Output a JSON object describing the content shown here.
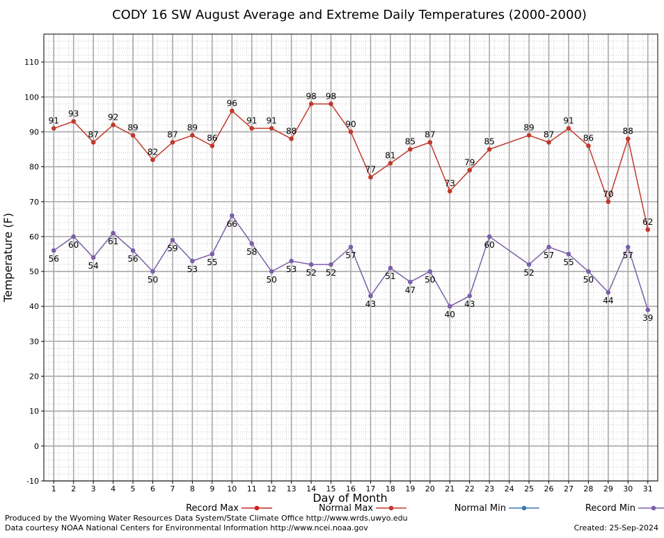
{
  "chart_data": {
    "type": "line",
    "title": "CODY 16 SW August Average and Extreme Daily Temperatures (2000-2000)",
    "xlabel": "Day of Month",
    "ylabel": "Temperature (F)",
    "ylim": [
      -10,
      118
    ],
    "y_ticks": [
      -10,
      0,
      10,
      20,
      30,
      40,
      50,
      60,
      70,
      80,
      90,
      100,
      110
    ],
    "x": [
      1,
      2,
      3,
      4,
      5,
      6,
      7,
      8,
      9,
      10,
      11,
      12,
      13,
      14,
      15,
      16,
      17,
      18,
      19,
      20,
      21,
      22,
      23,
      24,
      25,
      26,
      27,
      28,
      29,
      30,
      31
    ],
    "x_tick_labels": [
      "1",
      "2",
      "3",
      "4",
      "5",
      "6",
      "7",
      "8",
      "9",
      "10",
      "11",
      "12",
      "13",
      "14",
      "15",
      "16",
      "17",
      "18",
      "19",
      "20",
      "21",
      "22",
      "23",
      "24",
      "25",
      "26",
      "27",
      "28",
      "29",
      "30",
      "31"
    ],
    "grid": true,
    "series": [
      {
        "name": "Record Max",
        "color": "#cc2222",
        "x": [],
        "values": []
      },
      {
        "name": "Normal Max",
        "color": "#c0392b",
        "x": [
          1,
          2,
          3,
          4,
          5,
          6,
          7,
          8,
          9,
          10,
          11,
          12,
          13,
          14,
          15,
          16,
          17,
          18,
          19,
          20,
          21,
          22,
          23,
          25,
          26,
          27,
          28,
          29,
          30,
          31
        ],
        "values": [
          91,
          93,
          87,
          92,
          89,
          82,
          87,
          89,
          86,
          96,
          91,
          91,
          88,
          98,
          98,
          90,
          77,
          81,
          85,
          87,
          73,
          79,
          85,
          89,
          87,
          91,
          86,
          70,
          88,
          62
        ]
      },
      {
        "name": "Normal Min",
        "color": "#3a78b5",
        "x": [],
        "values": []
      },
      {
        "name": "Record Min",
        "color": "#7b5fa8",
        "x": [
          1,
          2,
          3,
          4,
          5,
          6,
          7,
          8,
          9,
          10,
          11,
          12,
          13,
          14,
          15,
          16,
          17,
          18,
          19,
          20,
          21,
          22,
          23,
          25,
          26,
          27,
          28,
          29,
          30,
          31
        ],
        "values": [
          56,
          60,
          54,
          61,
          56,
          50,
          59,
          53,
          55,
          66,
          58,
          50,
          53,
          52,
          52,
          57,
          43,
          51,
          47,
          50,
          40,
          43,
          60,
          52,
          57,
          55,
          50,
          44,
          57,
          39
        ]
      }
    ],
    "legend_placement": "bottom"
  },
  "footer": {
    "produced_by": "Produced by the Wyoming Water Resources Data System/State Climate Office http://www.wrds.uwyo.edu",
    "data_courtesy": "Data courtesy NOAA National Centers for Environmental Information http://www.ncei.noaa.gov",
    "created": "Created:  25-Sep-2024"
  }
}
